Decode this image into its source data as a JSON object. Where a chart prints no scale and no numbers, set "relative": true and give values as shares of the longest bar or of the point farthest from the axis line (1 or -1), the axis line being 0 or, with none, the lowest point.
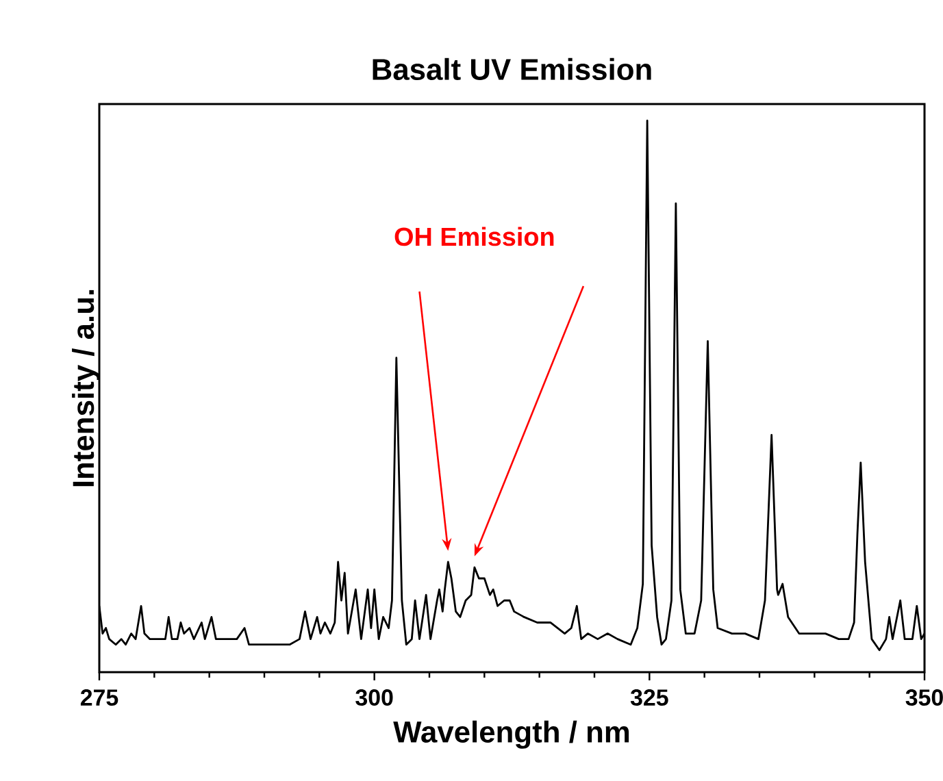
{
  "chart_data": {
    "type": "line",
    "title": "Basalt UV Emission",
    "xlabel": "Wavelength / nm",
    "ylabel": "Intensity / a.u.",
    "relative": true,
    "xlim": [
      275,
      350
    ],
    "xticks": [
      275,
      300,
      325,
      350
    ],
    "annotations": [
      "OH Emission"
    ],
    "series": [
      {
        "color": "#000000",
        "x": [
          275.0,
          275.3,
          275.6,
          275.9,
          276.5,
          277.0,
          277.4,
          277.9,
          278.3,
          278.8,
          279.1,
          279.6,
          280.5,
          281.0,
          281.3,
          281.6,
          282.1,
          282.4,
          282.7,
          283.2,
          283.6,
          284.3,
          284.6,
          285.2,
          285.6,
          286.6,
          287.5,
          288.2,
          288.6,
          289.9,
          291.1,
          292.3,
          293.2,
          293.7,
          294.2,
          294.8,
          295.1,
          295.5,
          296.0,
          296.4,
          296.7,
          297.0,
          297.3,
          297.6,
          298.3,
          298.8,
          299.4,
          299.7,
          300.0,
          300.4,
          300.8,
          301.3,
          301.6,
          302.0,
          302.5,
          302.9,
          303.4,
          303.7,
          304.1,
          304.7,
          305.1,
          305.7,
          305.9,
          306.2,
          306.4,
          306.7,
          307.0,
          307.4,
          307.8,
          308.3,
          308.8,
          309.1,
          309.5,
          310.0,
          310.5,
          310.8,
          311.2,
          311.8,
          312.3,
          312.7,
          313.6,
          314.8,
          316.0,
          317.3,
          317.9,
          318.4,
          318.8,
          319.4,
          320.3,
          321.2,
          322.1,
          323.3,
          323.9,
          324.4,
          324.8,
          325.2,
          325.7,
          326.1,
          326.5,
          327.0,
          327.4,
          327.8,
          328.3,
          329.1,
          329.7,
          330.3,
          330.8,
          331.2,
          332.5,
          333.7,
          334.9,
          335.5,
          336.1,
          336.6,
          336.7,
          337.1,
          337.6,
          338.6,
          339.8,
          341.0,
          342.2,
          343.1,
          343.6,
          343.9,
          344.2,
          344.6,
          345.2,
          345.9,
          346.5,
          346.8,
          347.1,
          347.8,
          348.2,
          348.9,
          349.3,
          349.7,
          350.0
        ],
        "values": [
          0.12,
          0.07,
          0.08,
          0.06,
          0.05,
          0.06,
          0.05,
          0.07,
          0.06,
          0.12,
          0.07,
          0.06,
          0.06,
          0.06,
          0.1,
          0.06,
          0.06,
          0.09,
          0.07,
          0.08,
          0.06,
          0.09,
          0.06,
          0.1,
          0.06,
          0.06,
          0.06,
          0.08,
          0.05,
          0.05,
          0.05,
          0.05,
          0.06,
          0.11,
          0.06,
          0.1,
          0.07,
          0.09,
          0.07,
          0.09,
          0.2,
          0.13,
          0.18,
          0.07,
          0.15,
          0.06,
          0.15,
          0.08,
          0.15,
          0.06,
          0.1,
          0.08,
          0.13,
          0.57,
          0.13,
          0.05,
          0.06,
          0.13,
          0.06,
          0.14,
          0.06,
          0.13,
          0.15,
          0.11,
          0.15,
          0.2,
          0.17,
          0.11,
          0.1,
          0.13,
          0.14,
          0.19,
          0.17,
          0.17,
          0.14,
          0.15,
          0.12,
          0.13,
          0.13,
          0.11,
          0.1,
          0.09,
          0.09,
          0.07,
          0.08,
          0.12,
          0.06,
          0.07,
          0.06,
          0.07,
          0.06,
          0.05,
          0.08,
          0.16,
          1.0,
          0.23,
          0.1,
          0.05,
          0.06,
          0.13,
          0.85,
          0.15,
          0.07,
          0.07,
          0.13,
          0.6,
          0.15,
          0.08,
          0.07,
          0.07,
          0.06,
          0.13,
          0.43,
          0.15,
          0.14,
          0.16,
          0.1,
          0.07,
          0.07,
          0.07,
          0.06,
          0.06,
          0.09,
          0.25,
          0.38,
          0.2,
          0.06,
          0.04,
          0.06,
          0.1,
          0.06,
          0.13,
          0.06,
          0.06,
          0.12,
          0.06,
          0.07
        ]
      }
    ]
  }
}
